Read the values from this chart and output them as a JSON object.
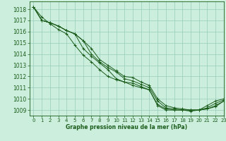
{
  "title": "Graphe pression niveau de la mer (hPa)",
  "bg_color": "#cceedd",
  "grid_color": "#99ccbb",
  "line_color": "#1a5c1a",
  "xlim": [
    -0.5,
    23
  ],
  "ylim": [
    1008.5,
    1018.7
  ],
  "yticks": [
    1009,
    1010,
    1011,
    1012,
    1013,
    1014,
    1015,
    1016,
    1017,
    1018
  ],
  "xticks": [
    0,
    1,
    2,
    3,
    4,
    5,
    6,
    7,
    8,
    9,
    10,
    11,
    12,
    13,
    14,
    15,
    16,
    17,
    18,
    19,
    20,
    21,
    22,
    23
  ],
  "series": [
    [
      1018.2,
      1017.3,
      1016.7,
      1016.2,
      1015.8,
      1014.8,
      1013.9,
      1013.3,
      1012.6,
      1012.0,
      1011.7,
      1011.5,
      1011.2,
      1011.0,
      1010.8,
      1009.5,
      1009.1,
      1009.0,
      1009.0,
      1009.0,
      1009.0,
      1009.2,
      1009.6,
      1009.9
    ],
    [
      1018.2,
      1017.0,
      1016.8,
      1016.5,
      1016.1,
      1015.8,
      1015.2,
      1014.5,
      1013.5,
      1013.0,
      1012.5,
      1012.0,
      1011.9,
      1011.5,
      1011.2,
      1010.0,
      1009.4,
      1009.2,
      1009.1,
      1009.0,
      1009.0,
      1009.1,
      1009.4,
      1009.8
    ],
    [
      1018.2,
      1017.0,
      1016.8,
      1016.5,
      1016.1,
      1015.8,
      1015.2,
      1014.0,
      1013.3,
      1012.8,
      1012.4,
      1011.8,
      1011.6,
      1011.3,
      1011.0,
      1009.8,
      1009.2,
      1009.1,
      1009.0,
      1009.0,
      1009.0,
      1009.1,
      1009.3,
      1009.8
    ],
    [
      1018.2,
      1017.0,
      1016.8,
      1016.5,
      1016.1,
      1015.8,
      1014.5,
      1013.8,
      1013.2,
      1012.6,
      1011.8,
      1011.5,
      1011.4,
      1011.1,
      1010.8,
      1009.4,
      1009.0,
      1009.0,
      1009.0,
      1008.9,
      1009.0,
      1009.4,
      1009.8,
      1010.0
    ]
  ]
}
